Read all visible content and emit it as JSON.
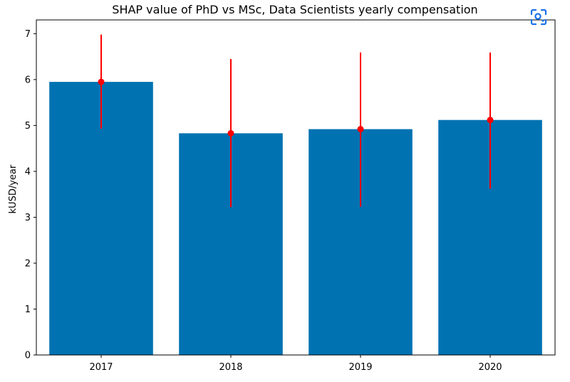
{
  "chart_data": {
    "type": "bar",
    "title": "SHAP value of PhD vs MSc, Data Scientists yearly compensation",
    "xlabel": "",
    "ylabel": "kUSD/year",
    "categories": [
      "2017",
      "2018",
      "2019",
      "2020"
    ],
    "values": [
      5.95,
      4.83,
      4.92,
      5.12
    ],
    "error_low": [
      4.93,
      3.22,
      3.23,
      3.62
    ],
    "error_high": [
      6.98,
      6.45,
      6.59,
      6.59
    ],
    "ylim": [
      0,
      7.3
    ],
    "yticks": [
      "0",
      "1",
      "2",
      "3",
      "4",
      "5",
      "6",
      "7"
    ],
    "grid": false,
    "bar_color": "#0072b2",
    "error_color": "#ff0000"
  },
  "toolbar": {
    "lens_icon": "visual-search-icon",
    "accent_color": "#1a73e8"
  }
}
